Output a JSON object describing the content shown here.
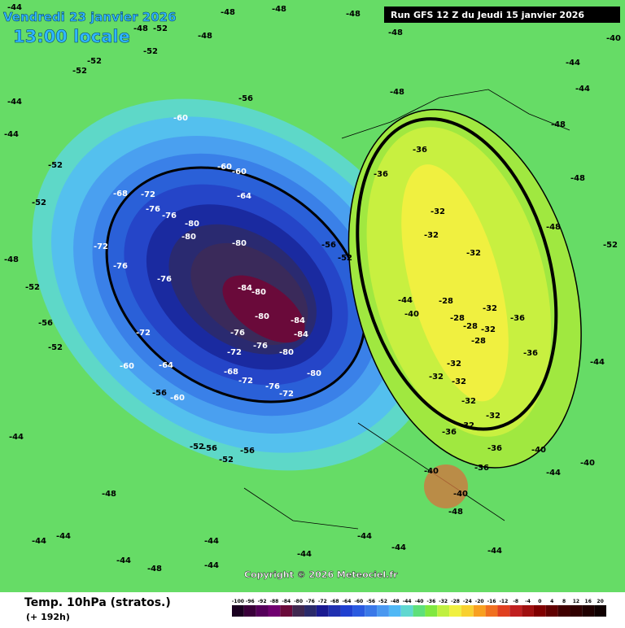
{
  "header": {
    "date": "Vendredi 23 janvier 2026",
    "time": "13:00 locale",
    "run": "Run GFS 12 Z du Jeudi 15 janvier 2026"
  },
  "footer": {
    "title": "Temp. 10hPa (stratos.)",
    "lead": "(+ 192h)",
    "copyright": "Copyright © 2026 Meteociel.fr"
  },
  "colorbar": {
    "ticks": [
      -100,
      -96,
      -92,
      -88,
      -84,
      -80,
      -76,
      -72,
      -68,
      -64,
      -60,
      -56,
      -52,
      -48,
      -44,
      -40,
      -36,
      -32,
      -28,
      -24,
      -20,
      -16,
      -12,
      -8,
      -4,
      0,
      4,
      8,
      12,
      16,
      20
    ],
    "colors": [
      "#1a0020",
      "#3a003a",
      "#55005a",
      "#700070",
      "#6a0a3a",
      "#402850",
      "#2a2a6a",
      "#1a1a90",
      "#2030b0",
      "#2040d0",
      "#2a5ae0",
      "#3a78e8",
      "#4a98f0",
      "#50b8f5",
      "#60d8d0",
      "#5ee07a",
      "#80e840",
      "#c0f040",
      "#f0f040",
      "#f8d030",
      "#f8a020",
      "#f07020",
      "#e04020",
      "#c02020",
      "#a01010",
      "#800000",
      "#600000",
      "#400000",
      "#300000",
      "#200000",
      "#100000"
    ]
  },
  "map_labels": [
    -44,
    -48,
    -52,
    -48,
    -48,
    -48,
    -48,
    -48,
    -40,
    -44,
    -44,
    -48,
    -52,
    -52,
    -52,
    -44,
    -44,
    -52,
    -52,
    -48,
    -52,
    -56,
    -52,
    -44,
    -48,
    -44,
    -44,
    -44,
    -48,
    -44,
    -44,
    -44,
    -44,
    -44,
    -48,
    -44,
    -40,
    -44,
    -40,
    -44,
    -48,
    -48,
    -52,
    -48,
    -60,
    -60,
    -60,
    -64,
    -68,
    -72,
    -76,
    -76,
    -80,
    -80,
    -80,
    -84,
    -80,
    -80,
    -84,
    -84,
    -80,
    -76,
    -76,
    -72,
    -80,
    -68,
    -72,
    -76,
    -72,
    -64,
    -60,
    -56,
    -52,
    -56,
    -52,
    -60,
    -56,
    -72,
    -76,
    -72,
    -76,
    -56,
    -52,
    -56,
    -36,
    -36,
    -32,
    -32,
    -32,
    -28,
    -28,
    -28,
    -32,
    -36,
    -32,
    -28,
    -32,
    -32,
    -32,
    -32,
    -32,
    -32,
    -36,
    -36,
    -36,
    -40,
    -40,
    -36,
    -40,
    -44
  ]
}
